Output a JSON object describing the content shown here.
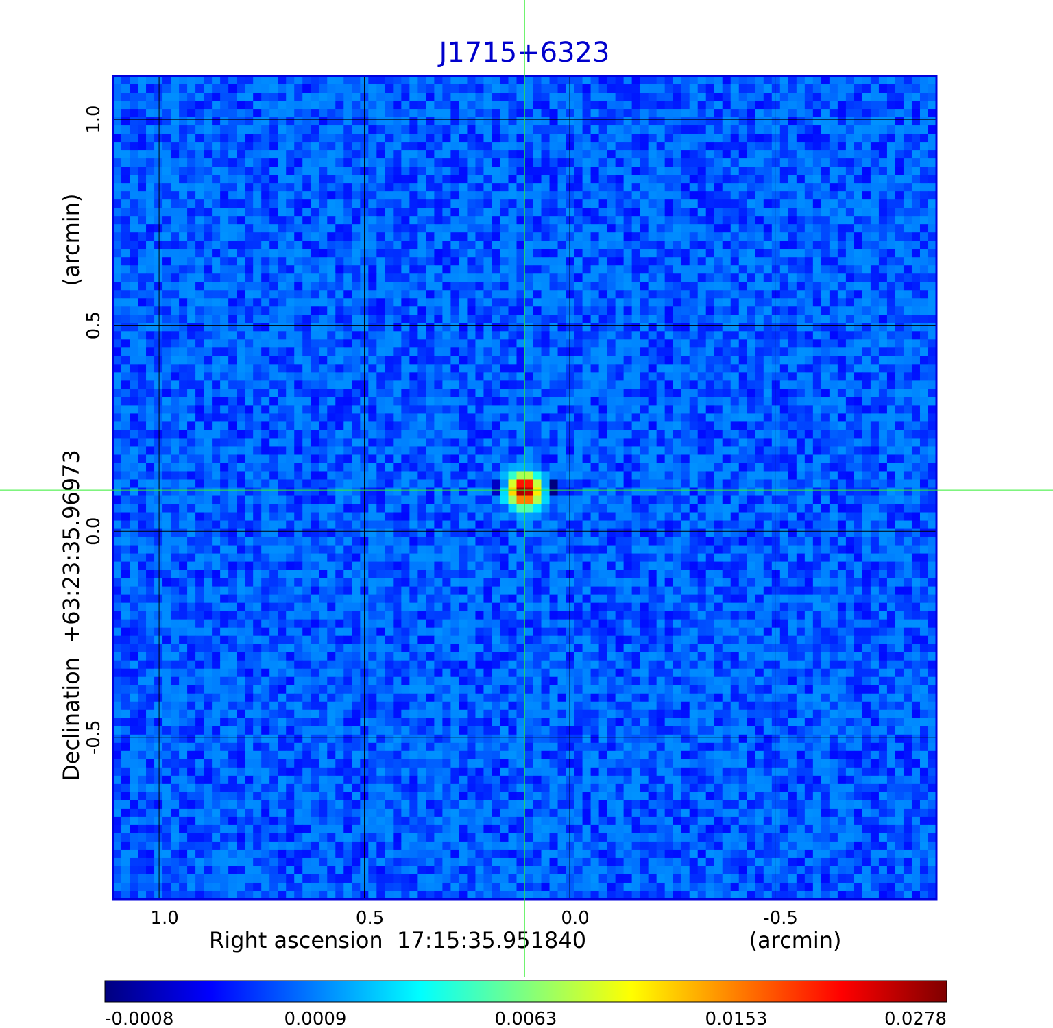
{
  "chart_data": {
    "type": "heatmap",
    "title": "J1715+6323",
    "title_color": "#0000cc",
    "xlabel": "Right ascension  17:15:35.951840",
    "xunit": "(arcmin)",
    "ylabel": "Declination  +63:23:35.96973",
    "yunit": "(arcmin)",
    "x_ticks": [
      1.0,
      0.5,
      0.0,
      -0.5
    ],
    "x_tick_labels": [
      "1.0",
      "0.5",
      "0.0",
      "-0.5"
    ],
    "y_ticks": [
      1.0,
      0.5,
      0.0,
      -0.5
    ],
    "y_tick_labels": [
      "1.0",
      "0.5",
      "0.0",
      "-0.5"
    ],
    "xlim": [
      1.112,
      -0.893
    ],
    "ylim": [
      -0.893,
      1.105
    ],
    "x_direction": "decreasing",
    "grid": true,
    "grid_color": "#000000",
    "frame_color": "#0000dd",
    "crosshair": {
      "x": 0.11,
      "y": 0.1,
      "color": "#33ee33"
    },
    "source_peak": {
      "x": 0.11,
      "y": 0.1,
      "value": 0.0278
    },
    "background_level": 0.0007,
    "colormap": "jet",
    "colorbar": {
      "orientation": "horizontal",
      "position": "bottom",
      "min": -0.0008,
      "max": 0.0278,
      "ticks": [
        -0.0008,
        0.0009,
        0.0063,
        0.0153,
        0.0278
      ],
      "tick_labels": [
        "-0.0008",
        "0.0009",
        "0.0063",
        "0.0153",
        "0.0278"
      ],
      "colors": [
        "#00007f",
        "#0000ff",
        "#007fff",
        "#00ffff",
        "#7fff7f",
        "#ffff00",
        "#ff7f00",
        "#ff0000",
        "#7f0000"
      ]
    }
  }
}
